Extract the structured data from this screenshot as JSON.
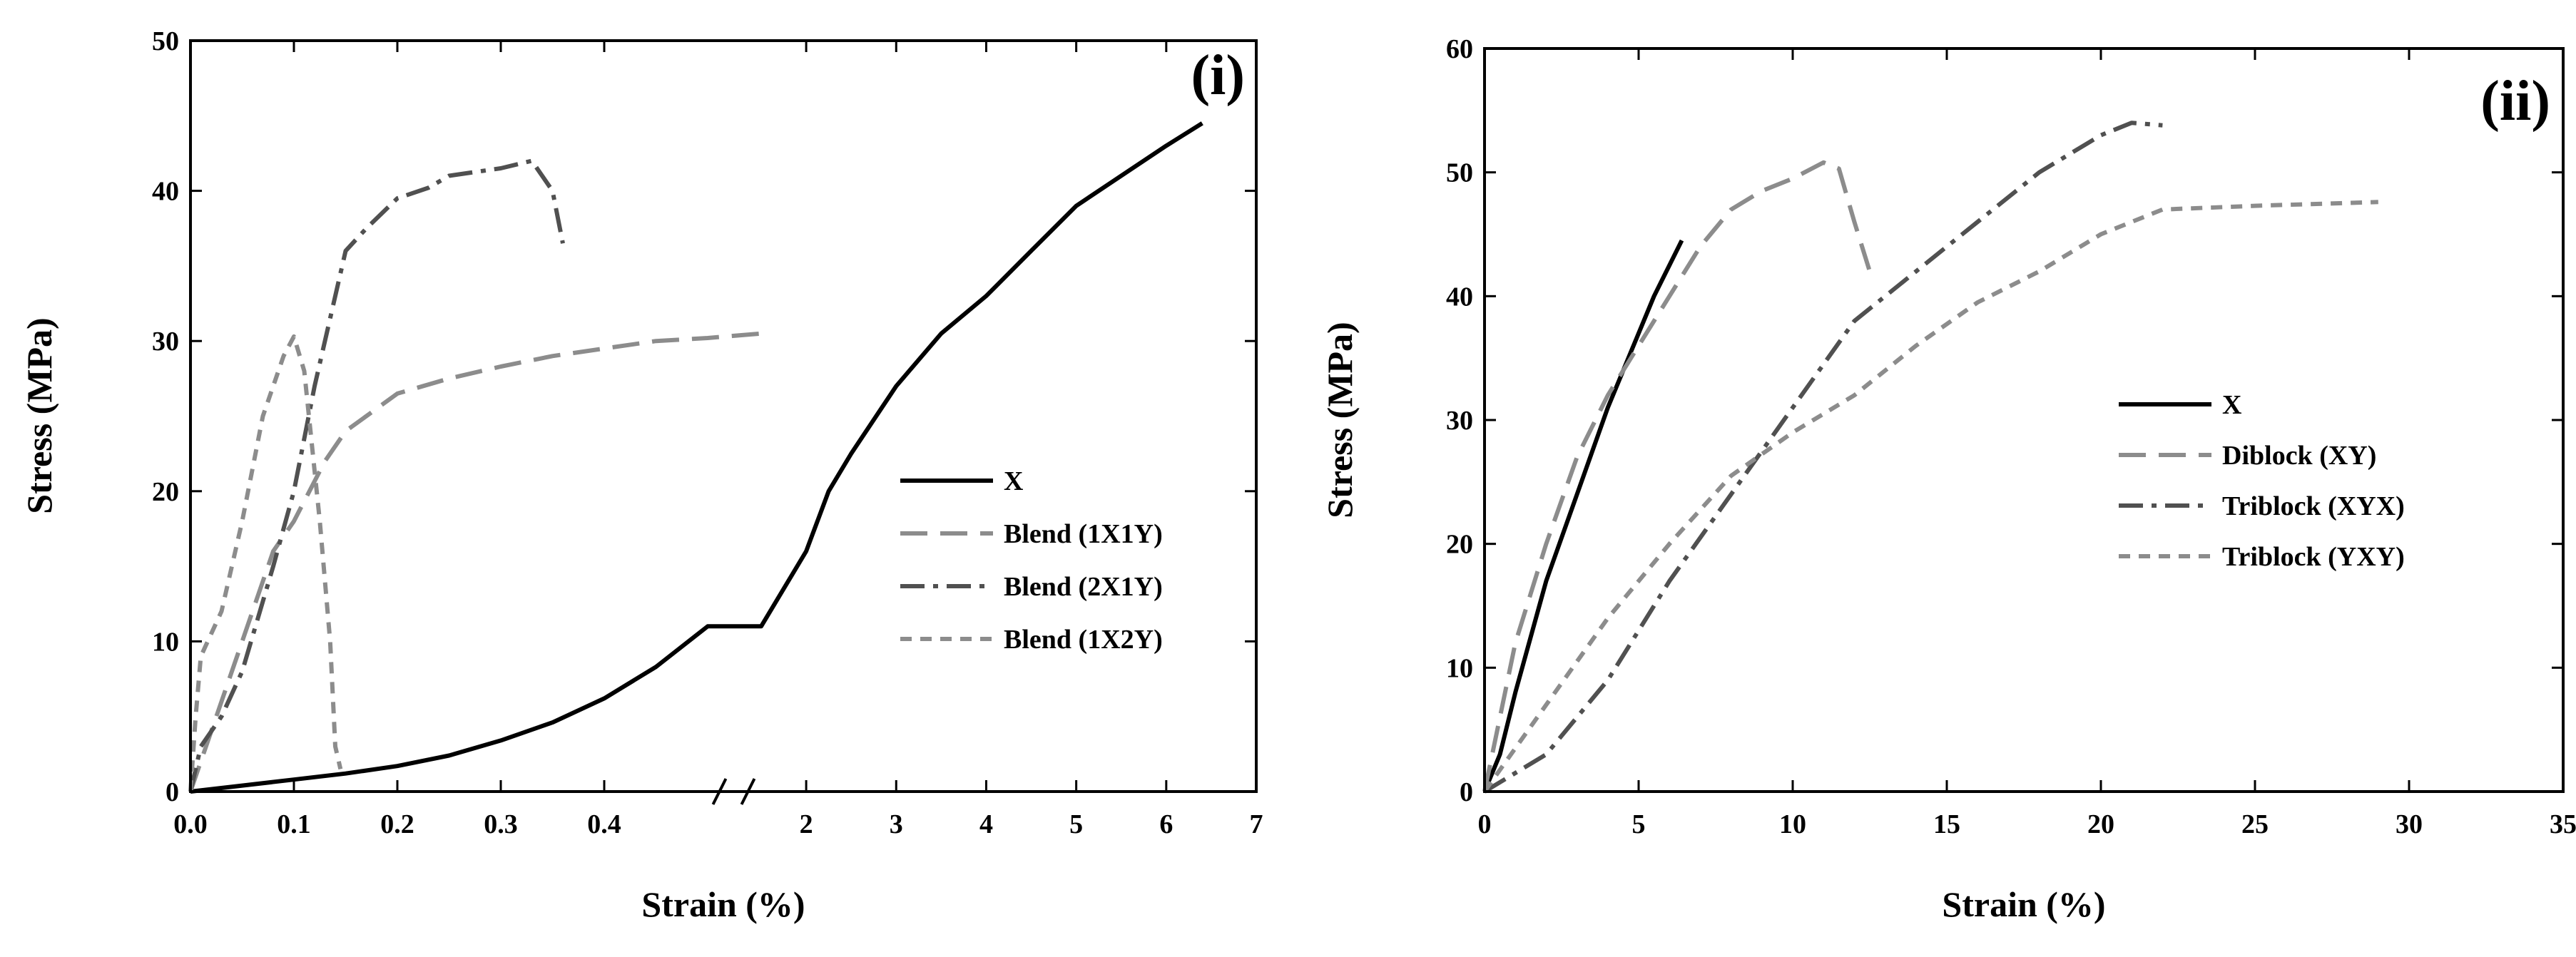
{
  "chart_data": [
    {
      "type": "line",
      "panel_label": "(i)",
      "xlabel": "Strain (%)",
      "ylabel": "Stress (MPa)",
      "ylim": [
        0,
        50
      ],
      "y_ticks": [
        0,
        10,
        20,
        30,
        40,
        50
      ],
      "x_axis_broken": true,
      "x_ticks_left": [
        0.0,
        0.1,
        0.2,
        0.3,
        0.4
      ],
      "x_tick_labels_left": [
        "0.0",
        "0.1",
        "0.2",
        "0.3",
        "0.4"
      ],
      "x_ticks_right": [
        2,
        3,
        4,
        5,
        6,
        7
      ],
      "x_tick_labels_right": [
        "2",
        "3",
        "4",
        "5",
        "6",
        "7"
      ],
      "legend_position": "center-right",
      "series": [
        {
          "name": "X",
          "dash": "solid",
          "color": "#000000",
          "points": [
            [
              0,
              0
            ],
            [
              0.05,
              0.4
            ],
            [
              0.1,
              0.8
            ],
            [
              0.15,
              1.2
            ],
            [
              0.2,
              1.7
            ],
            [
              0.25,
              2.4
            ],
            [
              0.3,
              3.4
            ],
            [
              0.35,
              4.6
            ],
            [
              0.4,
              6.2
            ],
            [
              0.45,
              8.3
            ],
            [
              0.5,
              11.0
            ],
            [
              1.5,
              11.0
            ],
            [
              2.0,
              16
            ],
            [
              2.25,
              20
            ],
            [
              2.5,
              22.5
            ],
            [
              3.0,
              27
            ],
            [
              3.5,
              30.5
            ],
            [
              4.0,
              33
            ],
            [
              4.5,
              36
            ],
            [
              5.0,
              39
            ],
            [
              5.5,
              41
            ],
            [
              6.0,
              43
            ],
            [
              6.4,
              44.5
            ]
          ]
        },
        {
          "name": "Blend (1X1Y)",
          "dash": "long-dash",
          "color": "#8c8c8c",
          "points": [
            [
              0,
              0
            ],
            [
              0.02,
              4
            ],
            [
              0.05,
              10
            ],
            [
              0.08,
              16
            ],
            [
              0.1,
              18
            ],
            [
              0.13,
              22
            ],
            [
              0.15,
              24
            ],
            [
              0.2,
              26.5
            ],
            [
              0.25,
              27.5
            ],
            [
              0.3,
              28.3
            ],
            [
              0.35,
              29
            ],
            [
              0.4,
              29.5
            ],
            [
              0.45,
              30
            ],
            [
              0.5,
              30.2
            ],
            [
              1.5,
              30.5
            ]
          ]
        },
        {
          "name": "Blend (2X1Y)",
          "dash": "dash-dot",
          "color": "#505050",
          "points": [
            [
              0,
              0
            ],
            [
              0.01,
              3
            ],
            [
              0.03,
              5
            ],
            [
              0.05,
              8
            ],
            [
              0.08,
              15
            ],
            [
              0.1,
              20
            ],
            [
              0.12,
              27
            ],
            [
              0.14,
              33
            ],
            [
              0.15,
              36
            ],
            [
              0.17,
              37.5
            ],
            [
              0.2,
              39.5
            ],
            [
              0.23,
              40.2
            ],
            [
              0.25,
              41
            ],
            [
              0.3,
              41.5
            ],
            [
              0.33,
              42
            ],
            [
              0.35,
              40
            ],
            [
              0.36,
              36.5
            ]
          ]
        },
        {
          "name": "Blend (1X2Y)",
          "dash": "short-dash",
          "color": "#8c8c8c",
          "points": [
            [
              0,
              0
            ],
            [
              0.005,
              5
            ],
            [
              0.01,
              9
            ],
            [
              0.03,
              12
            ],
            [
              0.05,
              18
            ],
            [
              0.07,
              25
            ],
            [
              0.09,
              29
            ],
            [
              0.1,
              30.3
            ],
            [
              0.11,
              28
            ],
            [
              0.125,
              18
            ],
            [
              0.135,
              10
            ],
            [
              0.14,
              3
            ],
            [
              0.145,
              1.5
            ]
          ]
        }
      ]
    },
    {
      "type": "line",
      "panel_label": "(ii)",
      "xlabel": "Strain (%)",
      "ylabel": "Stress (MPa)",
      "xlim": [
        0,
        35
      ],
      "ylim": [
        0,
        60
      ],
      "x_ticks": [
        0,
        5,
        10,
        15,
        20,
        25,
        30,
        35
      ],
      "x_tick_labels": [
        "0",
        "5",
        "10",
        "15",
        "20",
        "25",
        "30",
        "35"
      ],
      "y_ticks": [
        0,
        10,
        20,
        30,
        40,
        50,
        60
      ],
      "legend_position": "center-right",
      "series": [
        {
          "name": "X",
          "dash": "solid",
          "color": "#000000",
          "points": [
            [
              0,
              0
            ],
            [
              0.5,
              3
            ],
            [
              1,
              8
            ],
            [
              2,
              17
            ],
            [
              3,
              24
            ],
            [
              4,
              31
            ],
            [
              5,
              37
            ],
            [
              5.5,
              40
            ],
            [
              6,
              42.5
            ],
            [
              6.4,
              44.5
            ]
          ]
        },
        {
          "name": "Diblock (XY)",
          "dash": "long-dash",
          "color": "#8c8c8c",
          "points": [
            [
              0,
              0
            ],
            [
              0.5,
              6
            ],
            [
              1,
              12
            ],
            [
              2,
              20
            ],
            [
              3,
              27
            ],
            [
              4,
              32
            ],
            [
              5,
              36
            ],
            [
              6,
              40
            ],
            [
              7,
              44
            ],
            [
              8,
              47
            ],
            [
              9,
              48.5
            ],
            [
              10,
              49.5
            ],
            [
              11,
              50.8
            ],
            [
              11.5,
              50.3
            ],
            [
              12,
              46
            ],
            [
              12.5,
              42
            ]
          ]
        },
        {
          "name": "Triblock (XYX)",
          "dash": "dash-dot",
          "color": "#505050",
          "points": [
            [
              0,
              0
            ],
            [
              2,
              3
            ],
            [
              4,
              9
            ],
            [
              6,
              17
            ],
            [
              8,
              24
            ],
            [
              10,
              31
            ],
            [
              12,
              38
            ],
            [
              14,
              42
            ],
            [
              16,
              46
            ],
            [
              18,
              50
            ],
            [
              20,
              53
            ],
            [
              21,
              54
            ],
            [
              22,
              53.8
            ]
          ]
        },
        {
          "name": "Triblock (YXY)",
          "dash": "short-dash",
          "color": "#8c8c8c",
          "points": [
            [
              0,
              0
            ],
            [
              2,
              7
            ],
            [
              4,
              14
            ],
            [
              6,
              20
            ],
            [
              8,
              25.5
            ],
            [
              10,
              29
            ],
            [
              12,
              32
            ],
            [
              14,
              36
            ],
            [
              16,
              39.5
            ],
            [
              18,
              42
            ],
            [
              20,
              45
            ],
            [
              22,
              47
            ],
            [
              25,
              47.3
            ],
            [
              29,
              47.6
            ]
          ]
        }
      ]
    }
  ]
}
